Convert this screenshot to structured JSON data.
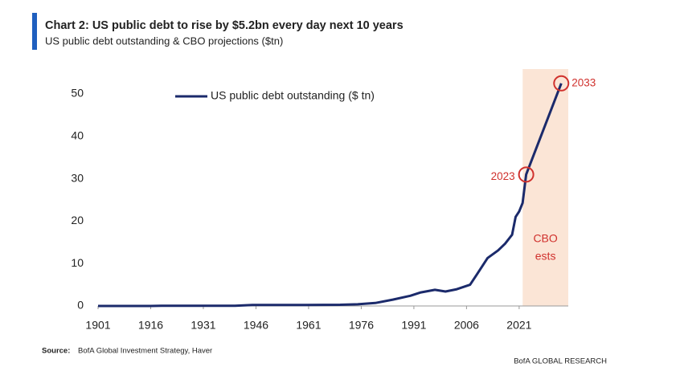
{
  "chart_data": {
    "type": "line",
    "title": "Chart 2: US public debt to rise by $5.2bn every day next 10 years",
    "subtitle": "US public debt outstanding & CBO projections ($tn)",
    "x": [
      1901,
      1916,
      1919,
      1940,
      1945,
      1960,
      1970,
      1975,
      1980,
      1985,
      1990,
      1993,
      1997,
      2000,
      2003,
      2007,
      2009,
      2012,
      2015,
      2017,
      2019,
      2020,
      2021,
      2022,
      2023,
      2033
    ],
    "series": [
      {
        "name": "US public debt outstanding ($ tn)",
        "color": "#1b2a6b",
        "values": [
          0,
          0,
          0.03,
          0.04,
          0.24,
          0.24,
          0.28,
          0.4,
          0.7,
          1.5,
          2.4,
          3.2,
          3.8,
          3.4,
          3.9,
          5.0,
          7.5,
          11.3,
          13.1,
          14.7,
          16.8,
          21.0,
          22.3,
          24.3,
          31,
          52.5
        ]
      }
    ],
    "xlim": [
      1901,
      2035
    ],
    "xticks": [
      1901,
      1916,
      1931,
      1946,
      1961,
      1976,
      1991,
      2006,
      2021
    ],
    "ylim": [
      0,
      55
    ],
    "yticks": [
      0,
      10,
      20,
      30,
      40,
      50
    ],
    "grid": false,
    "legend": "top-left",
    "projection_span": [
      2022,
      2035
    ],
    "projection_color": "#fbe5d6",
    "projection_label": [
      "CBO",
      "ests"
    ],
    "annotation_color": "#d0312d",
    "annotations": [
      {
        "text": "2023",
        "x": 2023,
        "y": 31
      },
      {
        "text": "2033",
        "x": 2033,
        "y": 52.5
      }
    ],
    "source_label": "Source:",
    "source": "BofA Global Investment Strategy, Haver",
    "footer": "BofA GLOBAL RESEARCH"
  }
}
